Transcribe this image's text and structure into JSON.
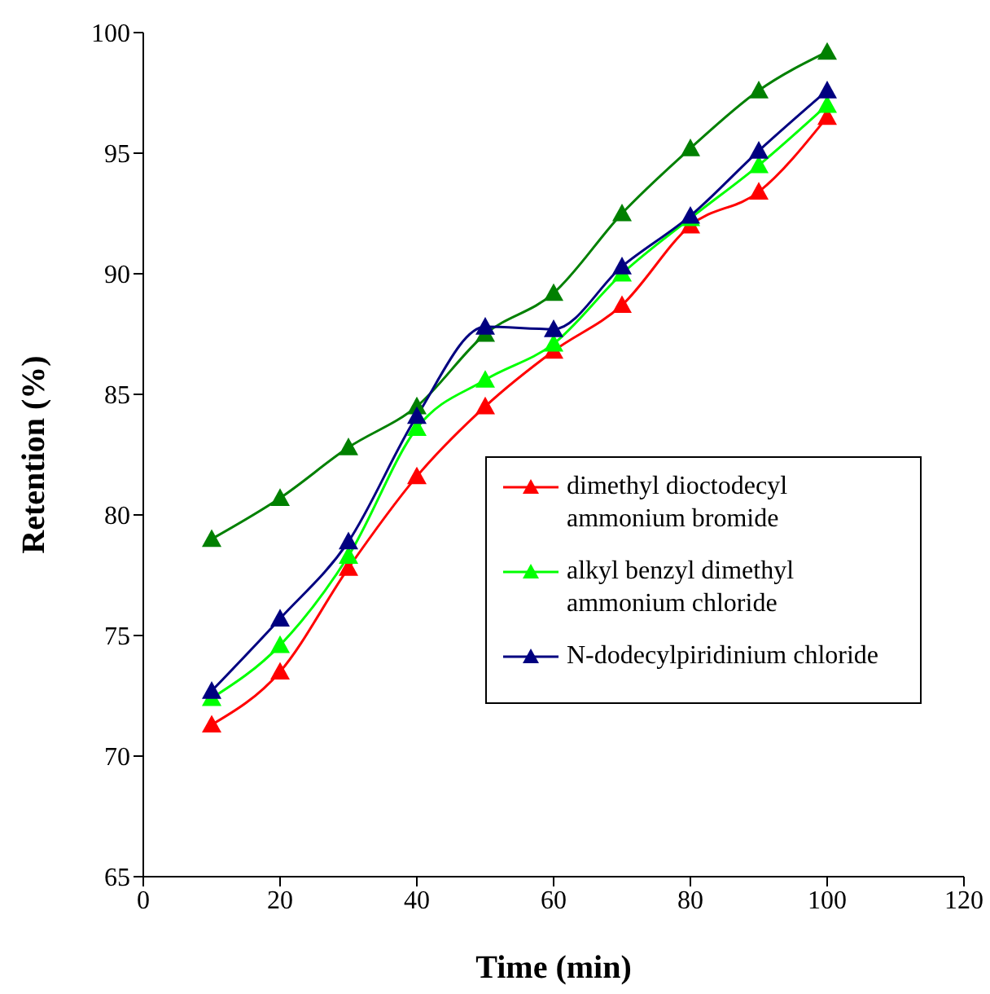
{
  "chart_data": {
    "type": "line",
    "xlabel": "Time (min)",
    "ylabel": "Retention (%)",
    "x": [
      10,
      20,
      30,
      40,
      50,
      60,
      70,
      80,
      90,
      100
    ],
    "series": [
      {
        "name": "dimethyl dioctodecyl ammonium bromide",
        "color": "#ff0000",
        "values": [
          71.3,
          73.5,
          77.8,
          81.6,
          84.5,
          86.8,
          88.7,
          92.0,
          93.4,
          96.5
        ]
      },
      {
        "name": "alkyl benzyl dimethyl ammonium chloride",
        "color": "#00ff00",
        "values": [
          72.4,
          74.6,
          78.3,
          83.6,
          85.6,
          87.1,
          90.0,
          92.3,
          94.5,
          97.0
        ]
      },
      {
        "color": "#008000",
        "values": [
          79.0,
          80.7,
          82.8,
          84.5,
          87.5,
          89.2,
          92.5,
          95.2,
          97.6,
          99.2
        ]
      },
      {
        "name": "N-dodecylpiridinium chloride",
        "color": "#000080",
        "values": [
          72.7,
          75.7,
          78.9,
          84.1,
          87.8,
          87.7,
          90.3,
          92.4,
          95.1,
          97.6
        ]
      }
    ],
    "xlim": [
      0,
      120
    ],
    "xticks": [
      0,
      20,
      40,
      60,
      80,
      100,
      120
    ],
    "ylim": [
      65,
      100
    ],
    "yticks": [
      65,
      70,
      75,
      80,
      85,
      90,
      95,
      100
    ],
    "legend": "right",
    "marker": "triangle",
    "line_style": "solid"
  }
}
